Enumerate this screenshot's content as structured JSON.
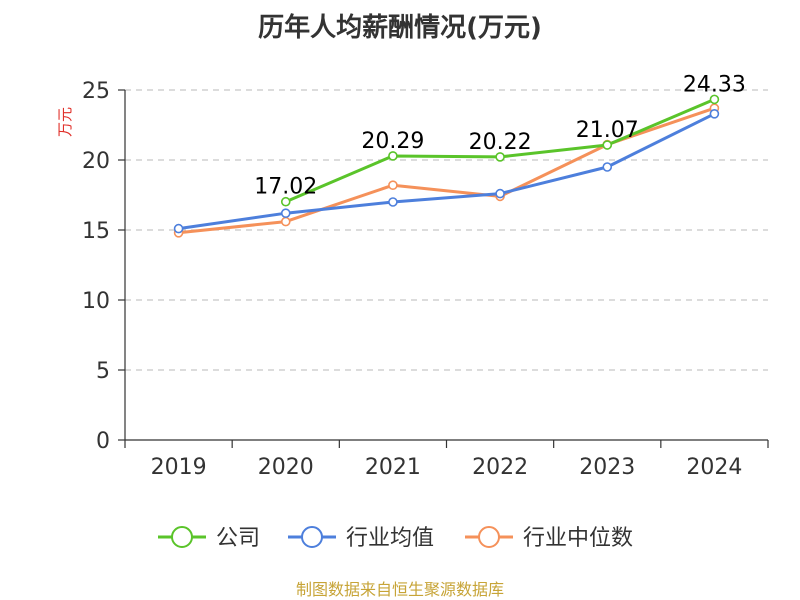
{
  "chart_data": {
    "type": "line",
    "title": "历年人均薪酬情况(万元)",
    "ylabel": "万元",
    "xlabel": "",
    "categories": [
      "2019",
      "2020",
      "2021",
      "2022",
      "2023",
      "2024"
    ],
    "ylim": [
      0,
      25
    ],
    "yticks": [
      0,
      5,
      10,
      15,
      20,
      25
    ],
    "grid": true,
    "legend_position": "bottom",
    "series": [
      {
        "name": "公司",
        "color": "#5ac42a",
        "values": [
          null,
          17.02,
          20.29,
          20.22,
          21.07,
          24.33
        ],
        "labels": [
          "",
          "17.02",
          "20.29",
          "20.22",
          "21.07",
          "24.33"
        ]
      },
      {
        "name": "行业均值",
        "color": "#4d7fdc",
        "values": [
          15.1,
          16.2,
          17.0,
          17.6,
          19.5,
          23.3
        ]
      },
      {
        "name": "行业中位数",
        "color": "#f5915a",
        "values": [
          14.8,
          15.6,
          18.2,
          17.4,
          21.1,
          23.7
        ]
      }
    ]
  },
  "source": "制图数据来自恒生聚源数据库"
}
